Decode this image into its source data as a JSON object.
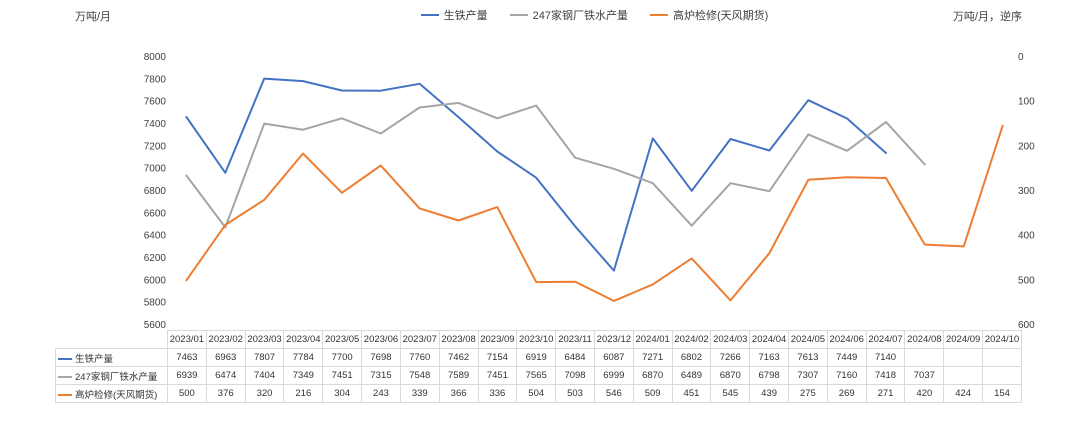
{
  "chart_data": {
    "type": "line",
    "title": "",
    "left_axis_label": "万吨/月",
    "right_axis_label": "万吨/月，逆序",
    "legend_position": "top",
    "grid": false,
    "categories": [
      "2023/01",
      "2023/02",
      "2023/03",
      "2023/04",
      "2023/05",
      "2023/06",
      "2023/07",
      "2023/08",
      "2023/09",
      "2023/10",
      "2023/11",
      "2023/12",
      "2024/01",
      "2024/02",
      "2024/03",
      "2024/04",
      "2024/05",
      "2024/06",
      "2024/07",
      "2024/08",
      "2024/09",
      "2024/10"
    ],
    "left_axis": {
      "min": 5600,
      "max": 8000,
      "step": 200
    },
    "right_axis": {
      "min": 0,
      "max": 600,
      "step": 100,
      "reversed": true
    },
    "series": [
      {
        "name": "生铁产量",
        "color": "#4472C4",
        "axis": "left",
        "values": [
          7463,
          6963,
          7807,
          7784,
          7700,
          7698,
          7760,
          7462,
          7154,
          6919,
          6484,
          6087,
          7271,
          6802,
          7266,
          7163,
          7613,
          7449,
          7140,
          null,
          null,
          null
        ]
      },
      {
        "name": "247家钢厂铁水产量",
        "color": "#A5A5A5",
        "axis": "left",
        "values": [
          6939,
          6474,
          7404,
          7349,
          7451,
          7315,
          7548,
          7589,
          7451,
          7565,
          7098,
          6999,
          6870,
          6489,
          6870,
          6798,
          7307,
          7160,
          7418,
          7037,
          null,
          null
        ]
      },
      {
        "name": "高炉检修(天风期货)",
        "color": "#ED7D31",
        "axis": "right",
        "values": [
          500,
          376,
          320,
          216,
          304,
          243,
          339,
          366,
          336,
          504,
          503,
          546,
          509,
          451,
          545,
          439,
          275,
          269,
          271,
          420,
          424,
          154
        ]
      }
    ]
  }
}
